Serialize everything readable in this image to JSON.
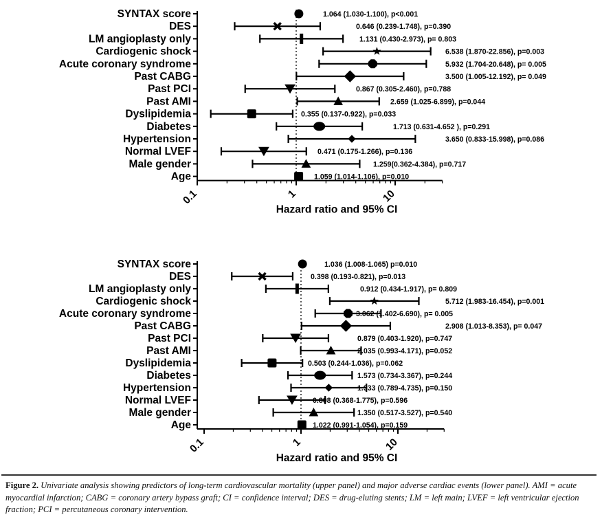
{
  "caption": {
    "label": "Figure 2.",
    "text": "Univariate analysis showing predictors of long-term cardiovascular mortality (upper panel) and major adverse cardiac events (lower panel). AMI = acute myocardial infarction; CABG = coronary artery bypass graft; CI = confidence interval; DES = drug-eluting stents; LM = left main; LVEF = left ventricular ejection fraction; PCI = percutaneous coronary intervention."
  },
  "chart_data": [
    {
      "type": "forest",
      "panel": "upper",
      "xlabel": "Hazard ratio and 95% CI",
      "xscale": "log",
      "xlim": [
        0.1,
        30
      ],
      "xticks": [
        "0.1",
        "1",
        "10"
      ],
      "reference_line": 1,
      "rows": [
        {
          "label": "SYNTAX score",
          "hr": 1.064,
          "lo": 1.03,
          "hi": 1.1,
          "marker": "circle",
          "annotation": "1.064 (1.030-1.100), p<0.001"
        },
        {
          "label": "DES",
          "hr": 0.646,
          "lo": 0.239,
          "hi": 1.748,
          "marker": "cross",
          "annotation": "0.646 (0.239-1.748), p=0.390"
        },
        {
          "label": "LM angioplasty only",
          "hr": 1.131,
          "lo": 0.43,
          "hi": 2.973,
          "marker": "bar",
          "annotation": "1.131 (0.430-2.973), p= 0.803"
        },
        {
          "label": "Cardiogenic shock",
          "hr": 6.538,
          "lo": 1.87,
          "hi": 22.856,
          "marker": "star",
          "annotation": "6.538 (1.870-22.856), p=0.003"
        },
        {
          "label": "Acute coronary syndrome",
          "hr": 5.932,
          "lo": 1.704,
          "hi": 20.648,
          "marker": "octagon",
          "annotation": "5.932 (1.704-20.648), p= 0.005"
        },
        {
          "label": "Past CABG",
          "hr": 3.5,
          "lo": 1.005,
          "hi": 12.192,
          "marker": "diamond",
          "annotation": "3.500 (1.005-12.192), p= 0.049"
        },
        {
          "label": "Past PCI",
          "hr": 0.867,
          "lo": 0.305,
          "hi": 2.46,
          "marker": "triangle-down",
          "annotation": "0.867 (0.305-2.460), p=0.788"
        },
        {
          "label": "Past AMI",
          "hr": 2.659,
          "lo": 1.025,
          "hi": 6.899,
          "marker": "triangle-up",
          "annotation": "2.659 (1.025-6.899), p=0.044"
        },
        {
          "label": "Dyslipidemia",
          "hr": 0.355,
          "lo": 0.137,
          "hi": 0.922,
          "marker": "square",
          "annotation": "0.355 (0.137-0.922), p=0.033"
        },
        {
          "label": "Diabetes",
          "hr": 1.713,
          "lo": 0.631,
          "hi": 4.652,
          "marker": "ellipse",
          "annotation": "1.713 (0.631-4.652 ), p=0.291"
        },
        {
          "label": "Hypertension",
          "hr": 3.65,
          "lo": 0.833,
          "hi": 15.998,
          "marker": "diamond-small",
          "annotation": "3.650 (0.833-15.998), p=0.086"
        },
        {
          "label": "Normal LVEF",
          "hr": 0.471,
          "lo": 0.175,
          "hi": 1.266,
          "marker": "triangle-down",
          "annotation": "0.471 (0.175-1.266), p=0.136"
        },
        {
          "label": "Male gender",
          "hr": 1.259,
          "lo": 0.362,
          "hi": 4.384,
          "marker": "triangle-up",
          "annotation": "1.259(0.362-4.384), p=0.717"
        },
        {
          "label": "Age",
          "hr": 1.059,
          "lo": 1.014,
          "hi": 1.106,
          "marker": "square",
          "annotation": "1.059 (1.014-1.106), p=0.010"
        }
      ]
    },
    {
      "type": "forest",
      "panel": "lower",
      "xlabel": "Hazard ratio and 95% CI",
      "xscale": "log",
      "xlim": [
        0.1,
        30
      ],
      "xticks": [
        "0.1",
        "1",
        "10"
      ],
      "reference_line": 1,
      "rows": [
        {
          "label": "SYNTAX score",
          "hr": 1.036,
          "lo": 1.008,
          "hi": 1.065,
          "marker": "circle",
          "annotation": "1.036 (1.008-1.065)  p=0.010"
        },
        {
          "label": "DES",
          "hr": 0.398,
          "lo": 0.193,
          "hi": 0.821,
          "marker": "cross",
          "annotation": "0.398 (0.193-0.821), p=0.013"
        },
        {
          "label": "LM angioplasty only",
          "hr": 0.912,
          "lo": 0.434,
          "hi": 1.917,
          "marker": "bar",
          "annotation": "0.912 (0.434-1.917), p= 0.809"
        },
        {
          "label": "Cardiogenic shock",
          "hr": 5.712,
          "lo": 1.983,
          "hi": 16.454,
          "marker": "star",
          "annotation": "5.712 (1.983-16.454), p=0.001"
        },
        {
          "label": "Acute coronary syndrome",
          "hr": 3.062,
          "lo": 1.402,
          "hi": 6.69,
          "marker": "octagon",
          "annotation": "3.062 (1.402-6.690), p= 0.005"
        },
        {
          "label": "Past CABG",
          "hr": 2.908,
          "lo": 1.013,
          "hi": 8.353,
          "marker": "diamond",
          "annotation": "2.908 (1.013-8.353), p= 0.047"
        },
        {
          "label": "Past PCI",
          "hr": 0.879,
          "lo": 0.403,
          "hi": 1.92,
          "marker": "triangle-down",
          "annotation": "0.879 (0.403-1.920), p=0.747"
        },
        {
          "label": "Past AMI",
          "hr": 2.035,
          "lo": 0.993,
          "hi": 4.171,
          "marker": "triangle-up",
          "annotation": "2.035 (0.993-4.171), p=0.052"
        },
        {
          "label": "Dyslipidemia",
          "hr": 0.503,
          "lo": 0.244,
          "hi": 1.036,
          "marker": "square",
          "annotation": "0.503 (0.244-1.036), p=0.062"
        },
        {
          "label": "Diabetes",
          "hr": 1.573,
          "lo": 0.734,
          "hi": 3.367,
          "marker": "ellipse",
          "annotation": "1.573 (0.734-3.367), p=0.244"
        },
        {
          "label": "Hypertension",
          "hr": 1.933,
          "lo": 0.789,
          "hi": 4.735,
          "marker": "diamond-small",
          "annotation": "1.933 (0.789-4.735), p=0.150"
        },
        {
          "label": "Normal LVEF",
          "hr": 0.808,
          "lo": 0.368,
          "hi": 1.775,
          "marker": "triangle-down",
          "annotation": "0.808 (0.368-1.775), p=0.596"
        },
        {
          "label": "Male gender",
          "hr": 1.35,
          "lo": 0.517,
          "hi": 3.527,
          "marker": "triangle-up",
          "annotation": "1.350 (0.517-3.527), p=0.540"
        },
        {
          "label": "Age",
          "hr": 1.022,
          "lo": 0.991,
          "hi": 1.054,
          "marker": "square",
          "annotation": "1.022 (0.991-1.054), p=0.159"
        }
      ]
    }
  ]
}
